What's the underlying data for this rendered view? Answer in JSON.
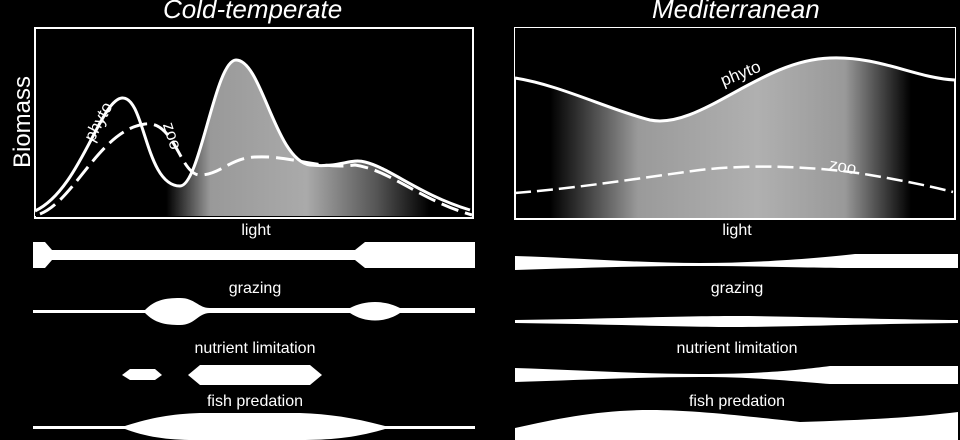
{
  "left_panel": {
    "title": "Cold-temperate",
    "phyto_label": "phyto",
    "zoo_label": "zoo",
    "factors": {
      "light": "light",
      "grazing": "grazing",
      "nutrient": "nutrient limitation",
      "fish": "fish predation"
    }
  },
  "right_panel": {
    "title": "Mediterranean",
    "phyto_label": "phyto",
    "zoo_label": "zoo",
    "factors": {
      "light": "light",
      "grazing": "grazing",
      "nutrient": "nutrient limitation",
      "fish": "fish predation"
    }
  },
  "y_axis_label": "Biomass",
  "colors": {
    "background": "#000000",
    "foreground": "#ffffff",
    "shade": "#a6a6a6"
  }
}
